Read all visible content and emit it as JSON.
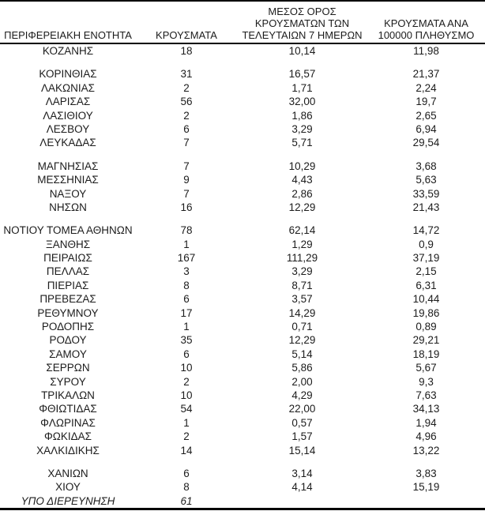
{
  "table": {
    "headers": [
      {
        "label": "ΠΕΡΙΦΕΡΕΙΑΚΗ ΕΝΟΤΗΤΑ"
      },
      {
        "label": "ΚΡΟΥΣΜΑΤΑ"
      },
      {
        "label": "ΜΕΣΟΣ ΟΡΟΣ\nΚΡΟΥΣΜΑΤΩΝ ΤΩΝ\nΤΕΛΕΥΤΑΙΩΝ 7 ΗΜΕΡΩΝ"
      },
      {
        "label": "ΚΡΟΥΣΜΑΤΑ ΑΝΑ\n100000 ΠΛΗΘΥΣΜΟ"
      }
    ],
    "rows": [
      {
        "region": "ΚΟΖΑΝΗΣ",
        "cases": "18",
        "avg_7day": "10,14",
        "per_100k": "11,98"
      },
      {
        "region": "ΚΟΡΙΝΘΙΑΣ",
        "cases": "31",
        "avg_7day": "16,57",
        "per_100k": "21,37",
        "gap_before": true
      },
      {
        "region": "ΛΑΚΩΝΙΑΣ",
        "cases": "2",
        "avg_7day": "1,71",
        "per_100k": "2,24"
      },
      {
        "region": "ΛΑΡΙΣΑΣ",
        "cases": "56",
        "avg_7day": "32,00",
        "per_100k": "19,7"
      },
      {
        "region": "ΛΑΣΙΘΙΟΥ",
        "cases": "2",
        "avg_7day": "1,86",
        "per_100k": "2,65"
      },
      {
        "region": "ΛΕΣΒΟΥ",
        "cases": "6",
        "avg_7day": "3,29",
        "per_100k": "6,94"
      },
      {
        "region": "ΛΕΥΚΑΔΑΣ",
        "cases": "7",
        "avg_7day": "5,71",
        "per_100k": "29,54"
      },
      {
        "region": "ΜΑΓΝΗΣΙΑΣ",
        "cases": "7",
        "avg_7day": "10,29",
        "per_100k": "3,68",
        "gap_before": true
      },
      {
        "region": "ΜΕΣΣΗΝΙΑΣ",
        "cases": "9",
        "avg_7day": "4,43",
        "per_100k": "5,63"
      },
      {
        "region": "ΝΑΞΟΥ",
        "cases": "7",
        "avg_7day": "2,86",
        "per_100k": "33,59"
      },
      {
        "region": "ΝΗΣΩΝ",
        "cases": "16",
        "avg_7day": "12,29",
        "per_100k": "21,43"
      },
      {
        "region": "ΝΟΤΙΟΥ ΤΟΜΕΑ ΑΘΗΝΩΝ",
        "cases": "78",
        "avg_7day": "62,14",
        "per_100k": "14,72",
        "gap_before": true
      },
      {
        "region": "ΞΑΝΘΗΣ",
        "cases": "1",
        "avg_7day": "1,29",
        "per_100k": "0,9"
      },
      {
        "region": "ΠΕΙΡΑΙΩΣ",
        "cases": "167",
        "avg_7day": "111,29",
        "per_100k": "37,19"
      },
      {
        "region": "ΠΕΛΛΑΣ",
        "cases": "3",
        "avg_7day": "3,29",
        "per_100k": "2,15"
      },
      {
        "region": "ΠΙΕΡΙΑΣ",
        "cases": "8",
        "avg_7day": "8,71",
        "per_100k": "6,31"
      },
      {
        "region": "ΠΡΕΒΕΖΑΣ",
        "cases": "6",
        "avg_7day": "3,57",
        "per_100k": "10,44"
      },
      {
        "region": "ΡΕΘΥΜΝΟΥ",
        "cases": "17",
        "avg_7day": "14,29",
        "per_100k": "19,86"
      },
      {
        "region": "ΡΟΔΟΠΗΣ",
        "cases": "1",
        "avg_7day": "0,71",
        "per_100k": "0,89"
      },
      {
        "region": "ΡΟΔΟΥ",
        "cases": "35",
        "avg_7day": "12,29",
        "per_100k": "29,21"
      },
      {
        "region": "ΣΑΜΟΥ",
        "cases": "6",
        "avg_7day": "5,14",
        "per_100k": "18,19"
      },
      {
        "region": "ΣΕΡΡΩΝ",
        "cases": "10",
        "avg_7day": "5,86",
        "per_100k": "5,67"
      },
      {
        "region": "ΣΥΡΟΥ",
        "cases": "2",
        "avg_7day": "2,00",
        "per_100k": "9,3"
      },
      {
        "region": "ΤΡΙΚΑΛΩΝ",
        "cases": "10",
        "avg_7day": "4,29",
        "per_100k": "7,63"
      },
      {
        "region": "ΦΘΙΩΤΙΔΑΣ",
        "cases": "54",
        "avg_7day": "22,00",
        "per_100k": "34,13"
      },
      {
        "region": "ΦΛΩΡΙΝΑΣ",
        "cases": "1",
        "avg_7day": "0,57",
        "per_100k": "1,94"
      },
      {
        "region": "ΦΩΚΙΔΑΣ",
        "cases": "2",
        "avg_7day": "1,57",
        "per_100k": "4,96"
      },
      {
        "region": "ΧΑΛΚΙΔΙΚΗΣ",
        "cases": "14",
        "avg_7day": "15,14",
        "per_100k": "13,22"
      },
      {
        "region": "ΧΑΝΙΩΝ",
        "cases": "6",
        "avg_7day": "3,14",
        "per_100k": "3,83",
        "gap_before": true
      },
      {
        "region": "ΧΙΟΥ",
        "cases": "8",
        "avg_7day": "4,14",
        "per_100k": "15,19"
      },
      {
        "region": "ΥΠΟ ΔΙΕΡΕΥΝΗΣΗ",
        "cases": "61",
        "avg_7day": "",
        "per_100k": "",
        "italic": true
      }
    ]
  }
}
